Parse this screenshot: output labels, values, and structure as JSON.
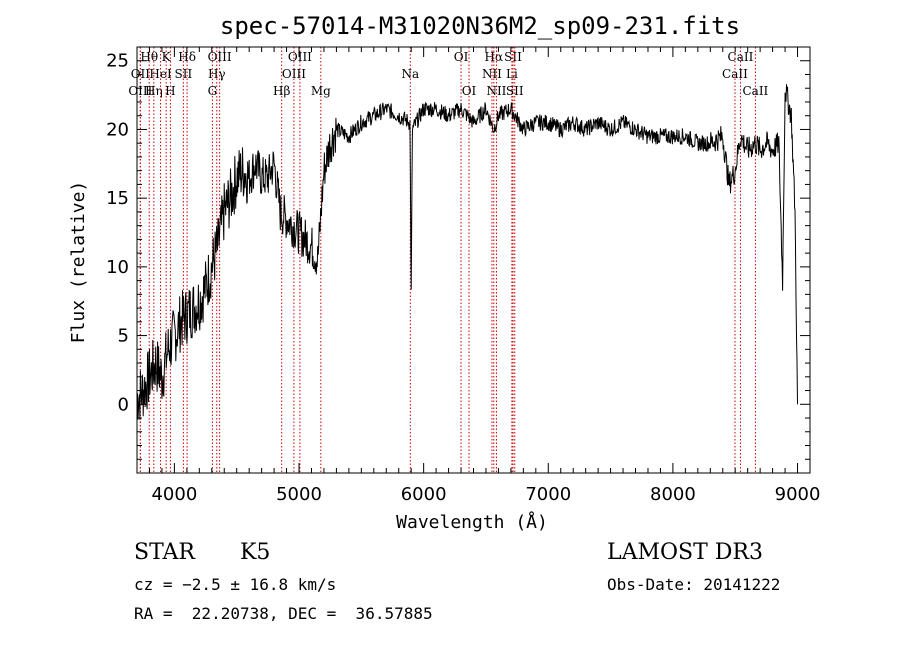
{
  "chart_data": {
    "type": "line",
    "title": "spec-57014-M31020N36M2_sp09-231.fits",
    "xlabel": "Wavelength (Å)",
    "ylabel": "Flux (relative)",
    "xlim": [
      3700,
      9100
    ],
    "ylim": [
      -5,
      26
    ],
    "xticks": [
      4000,
      5000,
      6000,
      7000,
      8000,
      9000
    ],
    "yticks": [
      0,
      5,
      10,
      15,
      20,
      25
    ],
    "spectrum": {
      "x": [
        3700,
        3750,
        3800,
        3850,
        3900,
        3950,
        4000,
        4050,
        4100,
        4150,
        4200,
        4250,
        4300,
        4350,
        4400,
        4450,
        4500,
        4550,
        4600,
        4650,
        4700,
        4750,
        4800,
        4850,
        4900,
        4950,
        5000,
        5050,
        5100,
        5150,
        5200,
        5250,
        5300,
        5400,
        5500,
        5600,
        5700,
        5800,
        5890,
        5900,
        5910,
        6000,
        6100,
        6200,
        6300,
        6400,
        6500,
        6563,
        6600,
        6700,
        6800,
        6900,
        7000,
        7100,
        7200,
        7300,
        7400,
        7500,
        7600,
        7700,
        7800,
        7900,
        8000,
        8100,
        8200,
        8300,
        8400,
        8450,
        8498,
        8542,
        8600,
        8662,
        8700,
        8750,
        8800,
        8850,
        8880,
        8900,
        8950,
        8980,
        9000
      ],
      "y": [
        0.5,
        1,
        2,
        3,
        2,
        4,
        5,
        6,
        6.5,
        7,
        7.5,
        8.5,
        10,
        11.5,
        14,
        15,
        16.5,
        17,
        16.5,
        17.5,
        16.5,
        16.5,
        17.5,
        14,
        13.5,
        13,
        12.5,
        12,
        11.5,
        10.5,
        17,
        19,
        20,
        19.5,
        20.5,
        21,
        21.5,
        21,
        20.5,
        8,
        20,
        21.5,
        21.5,
        21,
        21.5,
        20.5,
        21.5,
        20,
        21,
        21.5,
        20,
        20.5,
        20.5,
        20,
        20.5,
        20,
        20.5,
        20,
        20.5,
        20,
        19.5,
        19.5,
        19.5,
        19.5,
        19,
        19,
        19.5,
        16,
        17,
        19.5,
        18.5,
        19,
        18.5,
        19,
        18.5,
        19,
        9,
        23,
        21,
        14,
        0
      ]
    },
    "lines": [
      {
        "label": "Hθ",
        "wave": 3798,
        "row": 0
      },
      {
        "label": "OII",
        "wave": 3727,
        "row": 1
      },
      {
        "label": "OIII",
        "wave": 3727,
        "row": 2
      },
      {
        "label": "Hη",
        "wave": 3835,
        "row": 2
      },
      {
        "label": "K",
        "wave": 3934,
        "row": 0
      },
      {
        "label": "HeI",
        "wave": 3889,
        "row": 1
      },
      {
        "label": "SII",
        "wave": 4072,
        "row": 1
      },
      {
        "label": "H",
        "wave": 3968,
        "row": 2
      },
      {
        "label": "Hδ",
        "wave": 4102,
        "row": 0
      },
      {
        "label": "OIII",
        "wave": 4363,
        "row": 0
      },
      {
        "label": "Hγ",
        "wave": 4340,
        "row": 1
      },
      {
        "label": "G",
        "wave": 4305,
        "row": 2
      },
      {
        "label": "Hβ",
        "wave": 4861,
        "row": 2
      },
      {
        "label": "OIII",
        "wave": 5007,
        "row": 0
      },
      {
        "label": "OIII",
        "wave": 4959,
        "row": 1
      },
      {
        "label": "Mg",
        "wave": 5175,
        "row": 2
      },
      {
        "label": "Na",
        "wave": 5893,
        "row": 1
      },
      {
        "label": "OI",
        "wave": 6300,
        "row": 0
      },
      {
        "label": "OI",
        "wave": 6364,
        "row": 2
      },
      {
        "label": "Hα",
        "wave": 6563,
        "row": 0
      },
      {
        "label": "NII",
        "wave": 6548,
        "row": 1
      },
      {
        "label": "NII",
        "wave": 6584,
        "row": 2
      },
      {
        "label": "SII",
        "wave": 6717,
        "row": 0
      },
      {
        "label": "Li",
        "wave": 6708,
        "row": 1
      },
      {
        "label": "SII",
        "wave": 6731,
        "row": 2
      },
      {
        "label": "CaII",
        "wave": 8542,
        "row": 0
      },
      {
        "label": "CaII",
        "wave": 8498,
        "row": 1
      },
      {
        "label": "CaII",
        "wave": 8662,
        "row": 2
      }
    ]
  },
  "info": {
    "object_class": "STAR",
    "subclass": "K5",
    "survey": "LAMOST DR3",
    "cz": "cz = −2.5 ± 16.8 km/s",
    "obs_date": "Obs-Date: 20141222",
    "radec": "RA =  22.20738, DEC =  36.57885"
  },
  "colors": {
    "axis": "#000000",
    "line_marker": "#cc0000",
    "spectrum": "#000000"
  }
}
